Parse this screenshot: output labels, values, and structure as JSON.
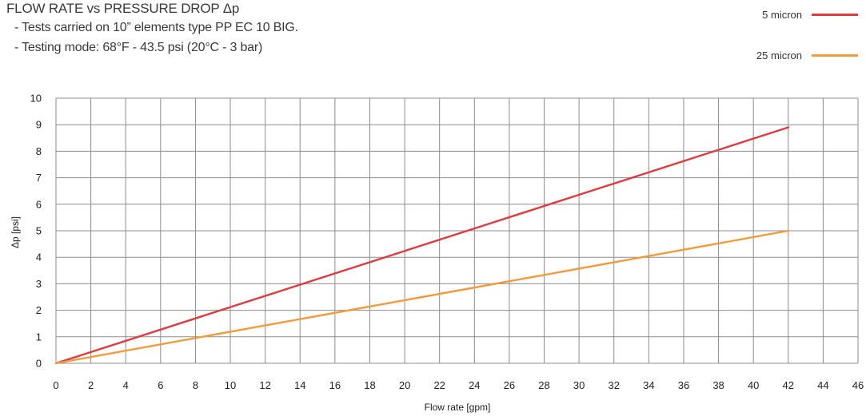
{
  "header": {
    "title": "FLOW RATE vs PRESSURE DROP Δp",
    "lines": [
      "- Tests carried on 10” elements type PP EC 10 BIG.",
      "- Testing mode: 68°F - 43.5 psi (20°C - 3 bar)"
    ]
  },
  "colors": {
    "grid": "#8c8c8c",
    "background": "#ffffff"
  },
  "chart_data": {
    "type": "line",
    "title": "FLOW RATE vs PRESSURE DROP Δp",
    "xlabel": "Flow rate [gpm]",
    "ylabel": "Δp [psi]",
    "xlim": [
      0,
      46
    ],
    "ylim": [
      0,
      10
    ],
    "xticks": [
      "0",
      "2",
      "4",
      "6",
      "8",
      "10",
      "12",
      "14",
      "16",
      "18",
      "20",
      "22",
      "24",
      "26",
      "28",
      "30",
      "32",
      "34",
      "36",
      "38",
      "40",
      "42",
      "44",
      "46"
    ],
    "yticks": [
      "0",
      "1",
      "2",
      "3",
      "4",
      "5",
      "6",
      "7",
      "8",
      "9",
      "10"
    ],
    "grid": true,
    "legend": "top-right",
    "series": [
      {
        "name": "5 micron",
        "color": "#e03a3e",
        "x": [
          0,
          42
        ],
        "y": [
          0,
          8.9
        ]
      },
      {
        "name": "25 micron",
        "color": "#f39a3a",
        "x": [
          0,
          42
        ],
        "y": [
          0,
          5.0
        ]
      }
    ]
  }
}
